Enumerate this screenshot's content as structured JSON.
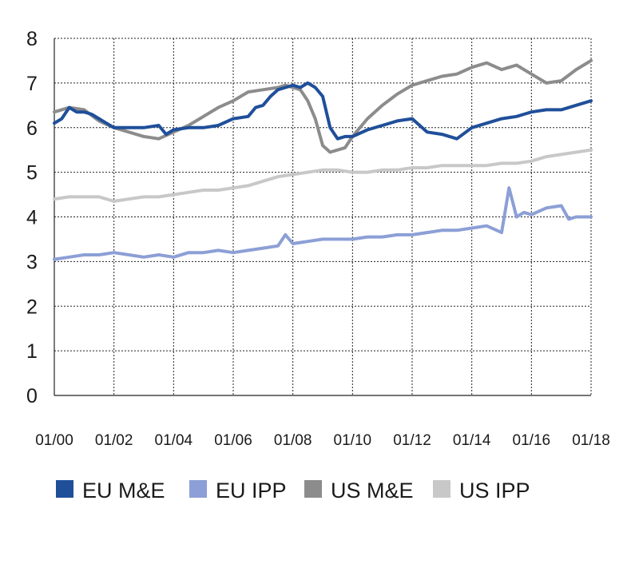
{
  "chart_data": {
    "type": "line",
    "title": "",
    "xlabel": "",
    "ylabel": "",
    "ylim": [
      0,
      8
    ],
    "y_ticks": [
      "0",
      "1",
      "2",
      "3",
      "4",
      "5",
      "6",
      "7",
      "8"
    ],
    "x_ticks": [
      "01/00",
      "01/02",
      "01/04",
      "01/06",
      "01/08",
      "01/10",
      "01/12",
      "01/14",
      "01/16",
      "01/18"
    ],
    "grid": true,
    "legend_position": "bottom",
    "series": [
      {
        "name": "EU M&E",
        "color": "#1f4f99",
        "x": [
          0,
          0.25,
          0.5,
          0.75,
          1,
          1.25,
          1.5,
          1.75,
          2,
          2.5,
          3,
          3.5,
          3.75,
          4,
          4.5,
          5,
          5.5,
          6,
          6.5,
          6.75,
          7,
          7.25,
          7.5,
          7.75,
          8,
          8.25,
          8.5,
          8.75,
          9,
          9.25,
          9.5,
          9.75,
          10,
          10.5,
          11,
          11.5,
          12,
          12.5,
          13,
          13.5,
          14,
          14.5,
          15,
          15.5,
          15.75,
          16,
          16.5,
          17,
          17.5,
          18
        ],
        "values": [
          6.1,
          6.2,
          6.45,
          6.35,
          6.35,
          6.3,
          6.2,
          6.1,
          6.0,
          6.0,
          6.0,
          6.05,
          5.85,
          5.95,
          6.0,
          6.0,
          6.05,
          6.2,
          6.25,
          6.45,
          6.5,
          6.7,
          6.85,
          6.9,
          6.95,
          6.9,
          7.0,
          6.9,
          6.7,
          6.0,
          5.75,
          5.8,
          5.8,
          5.95,
          6.05,
          6.15,
          6.2,
          5.9,
          5.85,
          5.75,
          6.0,
          6.1,
          6.2,
          6.25,
          6.3,
          6.35,
          6.4,
          6.4,
          6.5,
          6.6
        ]
      },
      {
        "name": "EU IPP",
        "color": "#8c9fd6",
        "x": [
          0,
          0.5,
          1,
          1.5,
          2,
          2.5,
          3,
          3.5,
          4,
          4.5,
          5,
          5.5,
          6,
          6.5,
          7,
          7.5,
          7.75,
          8,
          8.5,
          9,
          9.5,
          10,
          10.5,
          11,
          11.5,
          12,
          12.5,
          13,
          13.5,
          14,
          14.5,
          15,
          15.25,
          15.5,
          15.75,
          16,
          16.5,
          17,
          17.25,
          17.5,
          18
        ],
        "values": [
          3.05,
          3.1,
          3.15,
          3.15,
          3.2,
          3.15,
          3.1,
          3.15,
          3.1,
          3.2,
          3.2,
          3.25,
          3.2,
          3.25,
          3.3,
          3.35,
          3.6,
          3.4,
          3.45,
          3.5,
          3.5,
          3.5,
          3.55,
          3.55,
          3.6,
          3.6,
          3.65,
          3.7,
          3.7,
          3.75,
          3.8,
          3.65,
          4.65,
          4.0,
          4.1,
          4.05,
          4.2,
          4.25,
          3.95,
          4.0,
          4.0
        ]
      },
      {
        "name": "US M&E",
        "color": "#8c8c8c",
        "x": [
          0,
          0.5,
          1,
          1.5,
          2,
          2.5,
          3,
          3.5,
          4,
          4.5,
          5,
          5.5,
          6,
          6.5,
          7,
          7.5,
          7.75,
          8,
          8.25,
          8.5,
          8.75,
          9,
          9.25,
          9.5,
          9.75,
          10,
          10.5,
          11,
          11.5,
          12,
          12.5,
          13,
          13.5,
          14,
          14.5,
          15,
          15.5,
          16,
          16.5,
          17,
          17.5,
          18
        ],
        "values": [
          6.35,
          6.45,
          6.4,
          6.15,
          6.0,
          5.9,
          5.8,
          5.75,
          5.9,
          6.05,
          6.25,
          6.45,
          6.6,
          6.8,
          6.85,
          6.9,
          6.95,
          6.9,
          6.85,
          6.6,
          6.2,
          5.6,
          5.45,
          5.5,
          5.55,
          5.8,
          6.2,
          6.5,
          6.75,
          6.95,
          7.05,
          7.15,
          7.2,
          7.35,
          7.45,
          7.3,
          7.4,
          7.2,
          7.0,
          7.05,
          7.3,
          7.5
        ]
      },
      {
        "name": "US IPP",
        "color": "#c8c8c8",
        "x": [
          0,
          0.5,
          1,
          1.5,
          2,
          2.5,
          3,
          3.5,
          4,
          4.5,
          5,
          5.5,
          6,
          6.5,
          7,
          7.5,
          8,
          8.5,
          9,
          9.5,
          10,
          10.5,
          11,
          11.5,
          12,
          12.5,
          13,
          13.5,
          14,
          14.5,
          15,
          15.5,
          16,
          16.5,
          17,
          17.5,
          18
        ],
        "values": [
          4.4,
          4.45,
          4.45,
          4.45,
          4.35,
          4.4,
          4.45,
          4.45,
          4.5,
          4.55,
          4.6,
          4.6,
          4.65,
          4.7,
          4.8,
          4.9,
          4.95,
          5.0,
          5.05,
          5.05,
          5.0,
          5.0,
          5.05,
          5.05,
          5.1,
          5.1,
          5.15,
          5.15,
          5.15,
          5.15,
          5.2,
          5.2,
          5.25,
          5.35,
          5.4,
          5.45,
          5.5
        ]
      }
    ]
  }
}
